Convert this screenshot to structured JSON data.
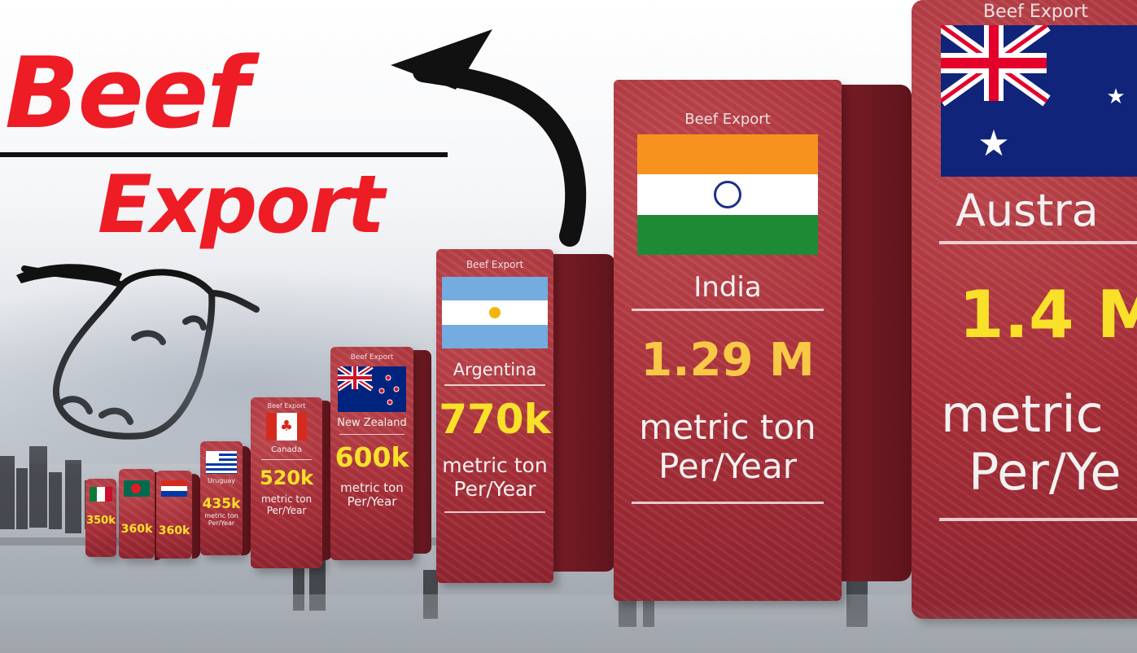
{
  "title": {
    "line1": "Beef",
    "line2": "Export"
  },
  "block_heading": "Beef Export",
  "blocks": [
    {
      "country": "Argentina",
      "value": "770k",
      "unit_line1": "metric ton",
      "unit_line2": "Per/Year",
      "flag": "argentina-flag"
    },
    {
      "country": "India",
      "value": "1.29 M",
      "unit_line1": "metric ton",
      "unit_line2": "Per/Year",
      "flag": "india-flag"
    },
    {
      "country": "Austra",
      "value": "1.4 M",
      "unit_line1": "metric",
      "unit_line2": "Per/Ye",
      "flag": "australia-flag"
    },
    {
      "country": "New Zealand",
      "value": "600k",
      "unit_line1": "metric ton",
      "unit_line2": "Per/Year",
      "flag": "new-zealand-flag"
    },
    {
      "country": "Canada",
      "value": "520k",
      "unit_line1": "metric ton",
      "unit_line2": "Per/Year",
      "flag": "canada-flag"
    },
    {
      "country": "Uruguay",
      "value": "435k",
      "unit_line1": "metric ton",
      "unit_line2": "Per/Year",
      "flag": "uruguay-flag"
    },
    {
      "value": "360k",
      "flag": "paraguay-flag"
    },
    {
      "value": "360k",
      "flag": "bangladesh-flag"
    },
    {
      "value": "350k",
      "flag": "mexico-flag"
    }
  ],
  "colors": {
    "title_red": "#ee1c25",
    "value_yellow": "#f9e12a",
    "meat_red": "#a93039"
  }
}
